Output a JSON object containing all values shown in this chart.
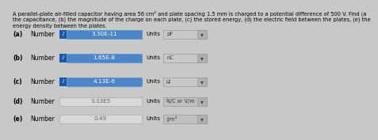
{
  "title_lines": [
    "A parallel-plate air-filled capacitor having area 56 cm² and plate spacing 1.5 mm is charged to a potential difference of 500 V. Find (a",
    "the capacitance, (b) the magnitude of the charge on each plate, (c) the stored energy, (d) the electric field between the plates, (e) the",
    "energy density between the plates."
  ],
  "rows": [
    {
      "label": "(a)",
      "mid_label": "Number",
      "number_text": "3.30E-11",
      "has_icon": true,
      "icon_color": "#1a5aaa",
      "number_bg": "#4a86c8",
      "units_text": "pF",
      "units_color": "#c8c8c8",
      "number_color": "white",
      "num_box_border": "#6090d0"
    },
    {
      "label": "(b)",
      "mid_label": "Number",
      "number_text": "1.65E-8",
      "has_icon": true,
      "icon_color": "#1a5aaa",
      "number_bg": "#4a86c8",
      "units_text": "nC",
      "units_color": "#c8c8c8",
      "number_color": "white",
      "num_box_border": "#6090d0"
    },
    {
      "label": "(c)",
      "mid_label": "Number",
      "number_text": "4.13E-6",
      "has_icon": true,
      "icon_color": "#1a5aaa",
      "number_bg": "#4a86c8",
      "units_text": "µJ",
      "units_color": "#c8c8c8",
      "number_color": "white",
      "num_box_border": "#6090d0"
    },
    {
      "label": "(d)",
      "mid_label": "Number",
      "number_text": "3.33E5",
      "has_icon": false,
      "icon_color": null,
      "number_bg": "#d8d8d8",
      "units_text": "N/C or V/m",
      "units_color": "#c0c0c0",
      "number_color": "#666666",
      "num_box_border": "#aaaaaa"
    },
    {
      "label": "(e)",
      "mid_label": "Number",
      "number_text": "0.49",
      "has_icon": false,
      "icon_color": null,
      "number_bg": "#d8d8d8",
      "units_text": "J/m³",
      "units_color": "#c0c0c0",
      "number_color": "#666666",
      "num_box_border": "#aaaaaa"
    }
  ],
  "bg_color": "#c8c8c8",
  "title_fontsize": 4.8,
  "label_fontsize": 5.5,
  "number_fontsize": 5.2,
  "units_fontsize": 5.0,
  "icon_char": "i"
}
